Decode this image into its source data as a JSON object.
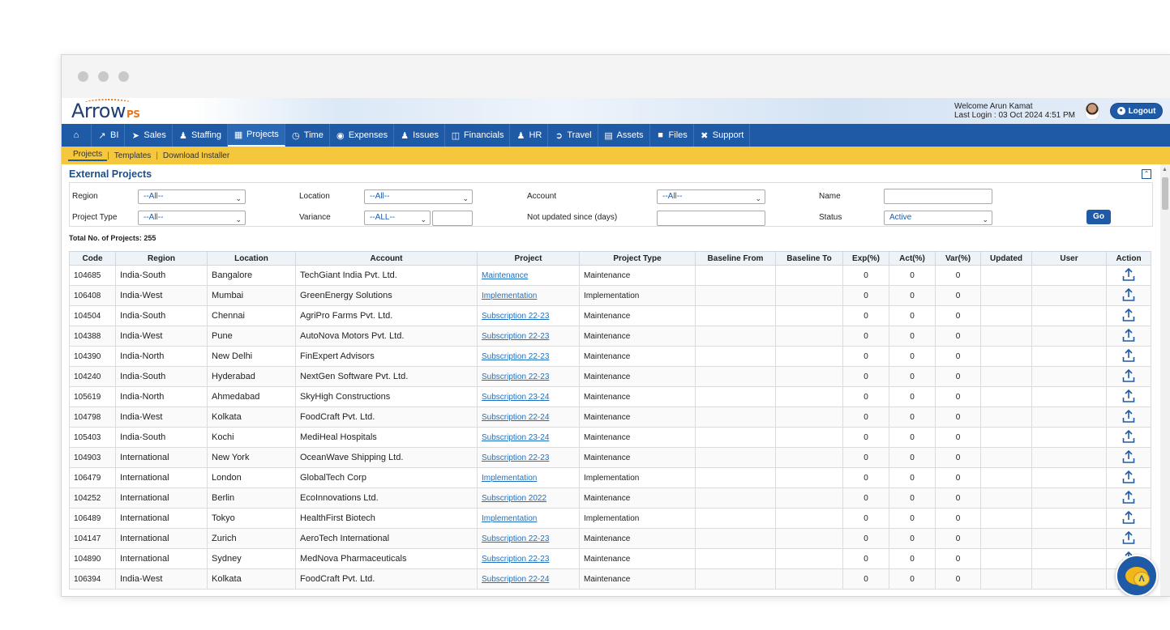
{
  "app": {
    "logo_text": "Arrow",
    "logo_suffix": "PS"
  },
  "header": {
    "welcome": "Welcome Arun Kamat",
    "last_login": "Last Login : 03 Oct 2024 4:51 PM",
    "logout_label": "Logout"
  },
  "nav": {
    "items": [
      {
        "label": "",
        "icon": "home-icon"
      },
      {
        "label": "BI",
        "icon": "chart-icon"
      },
      {
        "label": "Sales",
        "icon": "tag-icon"
      },
      {
        "label": "Staffing",
        "icon": "people-icon"
      },
      {
        "label": "Projects",
        "icon": "building-icon",
        "active": true
      },
      {
        "label": "Time",
        "icon": "clock-icon"
      },
      {
        "label": "Expenses",
        "icon": "money-icon"
      },
      {
        "label": "Issues",
        "icon": "users-icon"
      },
      {
        "label": "Financials",
        "icon": "coins-icon"
      },
      {
        "label": "HR",
        "icon": "person-dollar-icon"
      },
      {
        "label": "Travel",
        "icon": "walk-icon"
      },
      {
        "label": "Assets",
        "icon": "box-icon"
      },
      {
        "label": "Files",
        "icon": "folder-icon"
      },
      {
        "label": "Support",
        "icon": "tools-icon"
      }
    ]
  },
  "subnav": {
    "items": [
      "Projects",
      "Templates",
      "Download Installer"
    ]
  },
  "page": {
    "title": "External Projects"
  },
  "filters": {
    "region_label": "Region",
    "region_value": "--All--",
    "location_label": "Location",
    "location_value": "--All--",
    "account_label": "Account",
    "account_value": "--All--",
    "name_label": "Name",
    "name_value": "",
    "project_type_label": "Project Type",
    "project_type_value": "--All--",
    "variance_label": "Variance",
    "variance_value": "--ALL--",
    "not_updated_label": "Not updated since (days)",
    "not_updated_value": "",
    "status_label": "Status",
    "status_value": "Active",
    "go_label": "Go"
  },
  "summary": {
    "total_label": "Total No. of Projects:",
    "total_value": "255"
  },
  "table": {
    "headers": [
      "Code",
      "Region",
      "Location",
      "Account",
      "Project",
      "Project Type",
      "Baseline From",
      "Baseline To",
      "Exp(%)",
      "Act(%)",
      "Var(%)",
      "Updated",
      "User",
      "Action"
    ],
    "rows": [
      {
        "code": "104685",
        "region": "India-South",
        "location": "Bangalore",
        "account": "TechGiant India Pvt. Ltd.",
        "project": "Maintenance",
        "type": "Maintenance",
        "exp": "0",
        "act": "0",
        "var": "0"
      },
      {
        "code": "106408",
        "region": "India-West",
        "location": "Mumbai",
        "account": "GreenEnergy Solutions",
        "project": "Implementation",
        "type": "Implementation",
        "exp": "0",
        "act": "0",
        "var": "0"
      },
      {
        "code": "104504",
        "region": "India-South",
        "location": "Chennai",
        "account": "AgriPro Farms Pvt. Ltd.",
        "project": "Subscription 22-23",
        "type": "Maintenance",
        "exp": "0",
        "act": "0",
        "var": "0"
      },
      {
        "code": "104388",
        "region": "India-West",
        "location": "Pune",
        "account": "AutoNova Motors Pvt. Ltd.",
        "project": "Subscription 22-23",
        "type": "Maintenance",
        "exp": "0",
        "act": "0",
        "var": "0"
      },
      {
        "code": "104390",
        "region": "India-North",
        "location": "New Delhi",
        "account": "FinExpert Advisors",
        "project": "Subscription 22-23",
        "type": "Maintenance",
        "exp": "0",
        "act": "0",
        "var": "0"
      },
      {
        "code": "104240",
        "region": "India-South",
        "location": "Hyderabad",
        "account": "NextGen Software Pvt. Ltd.",
        "project": "Subscription 22-23",
        "type": "Maintenance",
        "exp": "0",
        "act": "0",
        "var": "0"
      },
      {
        "code": "105619",
        "region": "India-North",
        "location": "Ahmedabad",
        "account": "SkyHigh Constructions",
        "project": "Subscription 23-24",
        "type": "Maintenance",
        "exp": "0",
        "act": "0",
        "var": "0"
      },
      {
        "code": "104798",
        "region": "India-West",
        "location": "Kolkata",
        "account": "FoodCraft Pvt. Ltd.",
        "project": "Subscription 22-24",
        "type": "Maintenance",
        "exp": "0",
        "act": "0",
        "var": "0"
      },
      {
        "code": "105403",
        "region": "India-South",
        "location": "Kochi",
        "account": "MediHeal Hospitals",
        "project": "Subscription 23-24",
        "type": "Maintenance",
        "exp": "0",
        "act": "0",
        "var": "0"
      },
      {
        "code": "104903",
        "region": "International",
        "location": "New York",
        "account": "OceanWave Shipping Ltd.",
        "project": "Subscription 22-23",
        "type": "Maintenance",
        "exp": "0",
        "act": "0",
        "var": "0"
      },
      {
        "code": "106479",
        "region": "International",
        "location": "London",
        "account": "GlobalTech Corp",
        "project": "Implementation",
        "type": "Implementation",
        "exp": "0",
        "act": "0",
        "var": "0"
      },
      {
        "code": "104252",
        "region": "International",
        "location": "Berlin",
        "account": "EcoInnovations Ltd.",
        "project": "Subscription 2022",
        "type": "Maintenance",
        "exp": "0",
        "act": "0",
        "var": "0"
      },
      {
        "code": "106489",
        "region": "International",
        "location": "Tokyo",
        "account": "HealthFirst Biotech",
        "project": "Implementation",
        "type": "Implementation",
        "exp": "0",
        "act": "0",
        "var": "0"
      },
      {
        "code": "104147",
        "region": "International",
        "location": "Zurich",
        "account": "AeroTech International",
        "project": "Subscription 22-23",
        "type": "Maintenance",
        "exp": "0",
        "act": "0",
        "var": "0"
      },
      {
        "code": "104890",
        "region": "International",
        "location": "Sydney",
        "account": "MedNova Pharmaceuticals",
        "project": "Subscription 22-23",
        "type": "Maintenance",
        "exp": "0",
        "act": "0",
        "var": "0"
      },
      {
        "code": "106394",
        "region": "India-West",
        "location": "Kolkata",
        "account": "FoodCraft Pvt. Ltd.",
        "project": "Subscription 22-24",
        "type": "Maintenance",
        "exp": "0",
        "act": "0",
        "var": "0"
      }
    ]
  },
  "colors": {
    "primary": "#1e5aa6",
    "subnav": "#f4c73d",
    "link": "#1e6fc0"
  }
}
